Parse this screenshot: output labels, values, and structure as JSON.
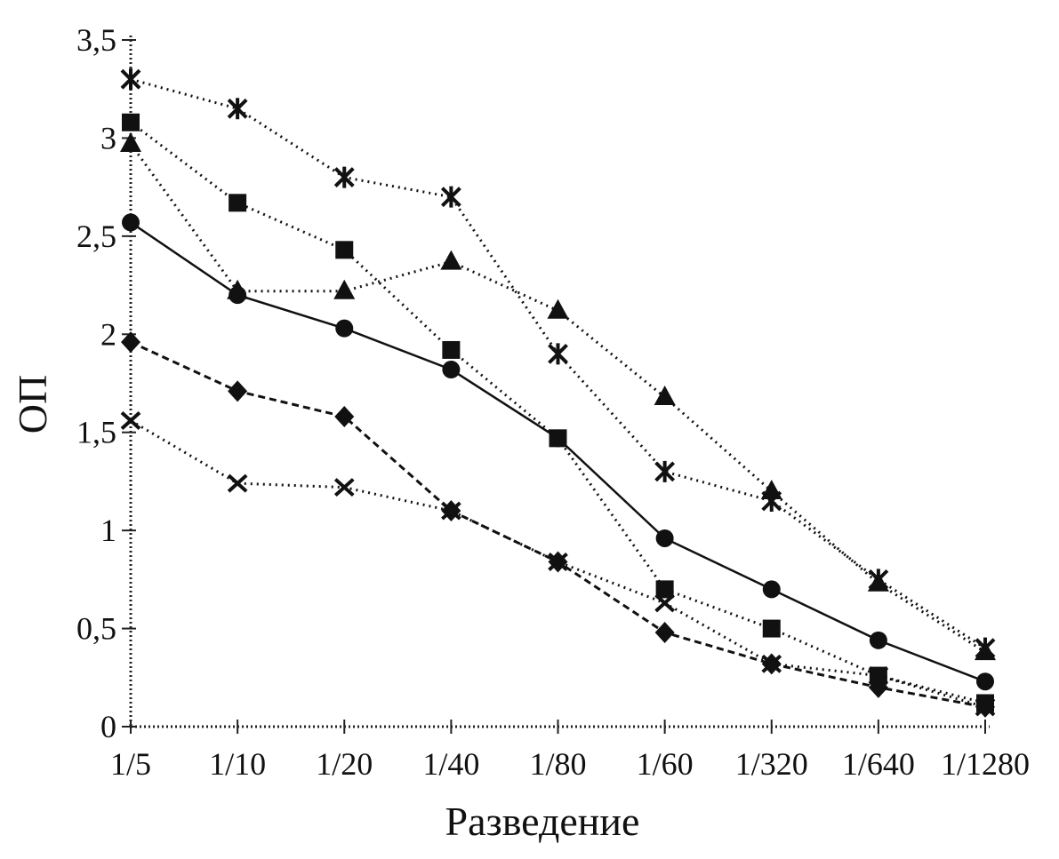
{
  "chart_data": {
    "type": "line",
    "xlabel": "Разведение",
    "ylabel": "ОП",
    "categories": [
      "1/5",
      "1/10",
      "1/20",
      "1/40",
      "1/80",
      "1/60",
      "1/320",
      "1/640",
      "1/1280"
    ],
    "ylim": [
      0,
      3.5
    ],
    "yticks": [
      "0",
      "0,5",
      "1",
      "1,5",
      "2",
      "2,5",
      "3",
      "3,5"
    ],
    "grid": false,
    "legend": false,
    "series": [
      {
        "marker": "asterisk",
        "style": "dotted",
        "values": [
          3.3,
          3.15,
          2.8,
          2.7,
          1.9,
          1.3,
          1.15,
          0.75,
          0.4
        ]
      },
      {
        "marker": "square",
        "style": "dotted",
        "values": [
          3.08,
          2.67,
          2.43,
          1.92,
          1.47,
          0.7,
          0.5,
          0.26,
          0.12
        ]
      },
      {
        "marker": "triangle",
        "style": "dotted",
        "values": [
          2.97,
          2.22,
          2.22,
          2.37,
          2.12,
          1.68,
          1.2,
          0.73,
          0.38
        ]
      },
      {
        "marker": "circle",
        "style": "solid",
        "values": [
          2.57,
          2.2,
          2.03,
          1.82,
          1.47,
          0.96,
          0.7,
          0.44,
          0.23
        ]
      },
      {
        "marker": "diamond",
        "style": "dashed",
        "values": [
          1.96,
          1.71,
          1.58,
          1.1,
          0.84,
          0.48,
          0.32,
          0.2,
          0.1
        ]
      },
      {
        "marker": "x",
        "style": "dotted",
        "values": [
          1.56,
          1.24,
          1.22,
          1.1,
          0.84,
          0.63,
          0.32,
          0.26,
          0.1
        ]
      }
    ]
  }
}
